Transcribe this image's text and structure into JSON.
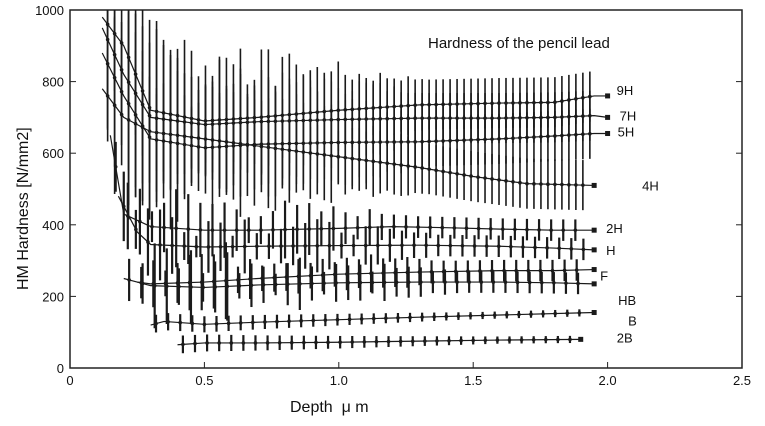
{
  "chart_data": {
    "type": "line",
    "title": "Hardness of the pencil lead",
    "xlabel": "Depth  μ m",
    "ylabel": "HM Hardness [N/mm2]",
    "xlim": [
      0,
      2.5
    ],
    "ylim": [
      0,
      1000
    ],
    "xticks": [
      "0",
      "0.5",
      "1.0",
      "1.5",
      "2.0",
      "2.5"
    ],
    "yticks": [
      "0",
      "200",
      "400",
      "600",
      "800",
      "1000"
    ],
    "grid": false,
    "legend": "direct labels at the right end of each curve",
    "colors": {
      "ink": "#1a1a1a",
      "background": "#ffffff",
      "frame": "#222222"
    },
    "series": [
      {
        "name": "9H",
        "x": [
          0.12,
          0.2,
          0.3,
          0.5,
          0.7,
          1.0,
          1.3,
          1.6,
          1.8,
          1.95,
          2.0
        ],
        "y": [
          980,
          900,
          720,
          690,
          700,
          720,
          735,
          740,
          742,
          760,
          760
        ]
      },
      {
        "name": "7H",
        "x": [
          0.12,
          0.2,
          0.3,
          0.5,
          0.7,
          1.0,
          1.3,
          1.6,
          1.8,
          1.95,
          2.0
        ],
        "y": [
          950,
          820,
          700,
          680,
          688,
          694,
          698,
          698,
          700,
          705,
          700
        ]
      },
      {
        "name": "5H",
        "x": [
          0.12,
          0.2,
          0.3,
          0.5,
          0.7,
          1.0,
          1.3,
          1.6,
          1.8,
          1.95,
          2.0
        ],
        "y": [
          880,
          760,
          640,
          615,
          625,
          630,
          632,
          640,
          648,
          655,
          655
        ]
      },
      {
        "name": "4H",
        "x": [
          0.12,
          0.2,
          0.3,
          0.5,
          0.7,
          1.0,
          1.3,
          1.5,
          1.7,
          1.95
        ],
        "y": [
          780,
          700,
          660,
          640,
          620,
          590,
          560,
          535,
          515,
          510
        ]
      },
      {
        "name": "2H",
        "x": [
          0.15,
          0.2,
          0.3,
          0.5,
          0.7,
          1.0,
          1.2,
          1.4,
          1.6,
          1.8,
          1.95
        ],
        "y": [
          650,
          430,
          395,
          385,
          385,
          390,
          395,
          392,
          388,
          385,
          385
        ]
      },
      {
        "name": "H",
        "x": [
          0.18,
          0.25,
          0.3,
          0.5,
          0.7,
          1.0,
          1.3,
          1.6,
          1.8,
          1.95
        ],
        "y": [
          480,
          380,
          345,
          338,
          340,
          342,
          343,
          340,
          335,
          330
        ]
      },
      {
        "name": "F",
        "x": [
          0.2,
          0.25,
          0.3,
          0.5,
          0.7,
          1.0,
          1.3,
          1.6,
          1.8,
          1.95
        ],
        "y": [
          250,
          240,
          235,
          240,
          250,
          262,
          268,
          272,
          272,
          275
        ]
      },
      {
        "name": "HB",
        "x": [
          0.25,
          0.3,
          0.5,
          0.7,
          1.0,
          1.3,
          1.6,
          1.8,
          1.95
        ],
        "y": [
          240,
          230,
          225,
          232,
          238,
          240,
          240,
          238,
          235
        ]
      },
      {
        "name": "B",
        "x": [
          0.3,
          0.35,
          0.5,
          0.7,
          1.0,
          1.3,
          1.6,
          1.95
        ],
        "y": [
          120,
          130,
          122,
          128,
          135,
          142,
          148,
          155
        ]
      },
      {
        "name": "2B",
        "x": [
          0.4,
          0.5,
          0.7,
          1.0,
          1.3,
          1.6,
          1.9
        ],
        "y": [
          65,
          70,
          70,
          72,
          75,
          78,
          80
        ]
      }
    ]
  }
}
